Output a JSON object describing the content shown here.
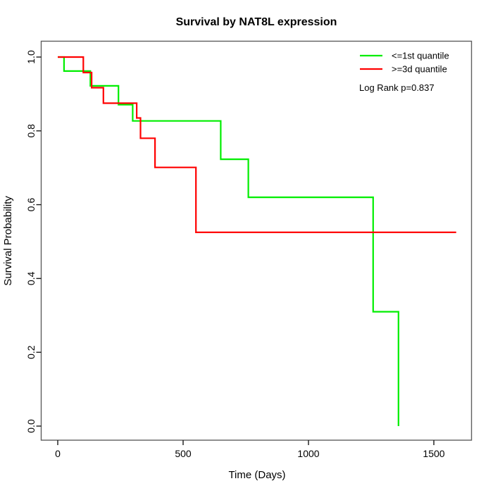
{
  "chart_data": {
    "type": "line",
    "subtype": "kaplan-meier-step",
    "title": "Survival by NAT8L expression",
    "xlabel": "Time (Days)",
    "ylabel": "Survival Probability",
    "xlim": [
      0,
      1600
    ],
    "ylim": [
      0.0,
      1.0
    ],
    "grid": false,
    "legend_position": "top-right",
    "x_ticks": [
      {
        "v": 0,
        "label": "0"
      },
      {
        "v": 500,
        "label": "500"
      },
      {
        "v": 1000,
        "label": "1000"
      },
      {
        "v": 1500,
        "label": "1500"
      }
    ],
    "y_ticks": [
      {
        "v": 0.0,
        "label": "0.0"
      },
      {
        "v": 0.2,
        "label": "0.2"
      },
      {
        "v": 0.4,
        "label": "0.4"
      },
      {
        "v": 0.6,
        "label": "0.6"
      },
      {
        "v": 0.8,
        "label": "0.8"
      },
      {
        "v": 1.0,
        "label": "1.0"
      }
    ],
    "series": [
      {
        "name": "<=1st quantile",
        "color": "#00ee00",
        "steps": [
          [
            0,
            1.0
          ],
          [
            25,
            0.962
          ],
          [
            130,
            0.922
          ],
          [
            242,
            0.871
          ],
          [
            299,
            0.827
          ],
          [
            650,
            0.723
          ],
          [
            760,
            0.62
          ],
          [
            1258,
            0.31
          ],
          [
            1359,
            0.0
          ]
        ],
        "end_time": 1359
      },
      {
        "name": ">=3d quantile",
        "color": "#ff0000",
        "steps": [
          [
            0,
            1.0
          ],
          [
            102,
            0.958
          ],
          [
            135,
            0.917
          ],
          [
            182,
            0.875
          ],
          [
            315,
            0.835
          ],
          [
            330,
            0.78
          ],
          [
            388,
            0.701
          ],
          [
            551,
            0.525
          ]
        ],
        "end_time": 1589
      }
    ],
    "annotation": "Log Rank p=0.837"
  }
}
